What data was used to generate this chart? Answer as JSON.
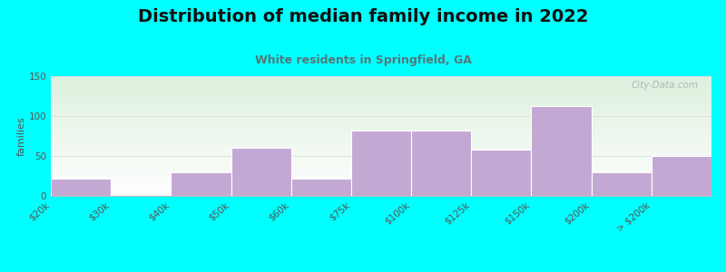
{
  "title": "Distribution of median family income in 2022",
  "subtitle": "White residents in Springfield, GA",
  "ylabel": "families",
  "background_color": "#00FFFF",
  "bar_color": "#C4A8D4",
  "plot_bg_top_color": "#ddf0dd",
  "plot_bg_bottom_color": "#ffffff",
  "watermark": "City-Data.com",
  "title_fontsize": 14,
  "subtitle_fontsize": 9,
  "ylabel_fontsize": 8,
  "tick_fontsize": 7.5,
  "values": [
    22,
    0,
    30,
    60,
    22,
    82,
    82,
    58,
    113,
    30,
    50
  ],
  "tick_labels": [
    "$20k",
    "$30k",
    "$40k",
    "$50k",
    "$60k",
    "$75k",
    "$100k",
    "$125k",
    "$150k",
    "$200k",
    "> $200k"
  ],
  "ylim": [
    0,
    150
  ],
  "yticks": [
    0,
    50,
    100,
    150
  ]
}
